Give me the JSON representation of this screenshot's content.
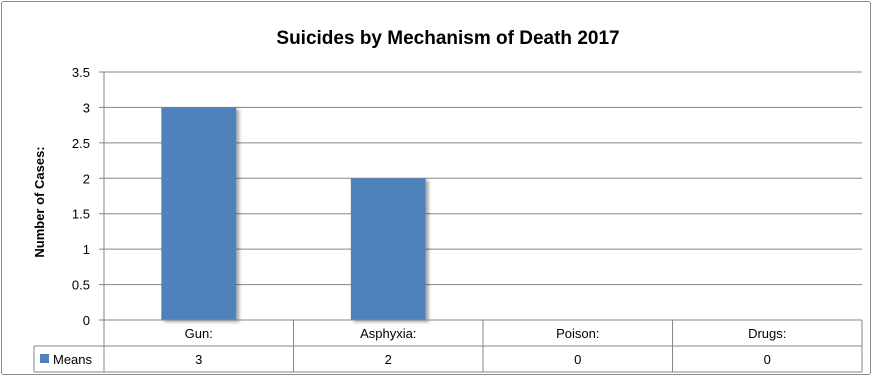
{
  "chart_data": {
    "type": "bar",
    "title": "Suicides by Mechanism of Death 2017",
    "xlabel": "",
    "ylabel": "Number of Cases:",
    "categories": [
      "Gun:",
      "Asphyxia:",
      "Poison:",
      "Drugs:"
    ],
    "series": [
      {
        "name": "Means",
        "values": [
          3,
          2,
          0,
          0
        ],
        "color": "#4f81bd"
      }
    ],
    "ylim": [
      0,
      3.5
    ],
    "yticks": [
      "0",
      "0.5",
      "1",
      "1.5",
      "2",
      "2.5",
      "3",
      "3.5"
    ],
    "grid": true,
    "legend": "data-table",
    "data_table": {
      "row_label": "Means",
      "values": [
        "3",
        "2",
        "0",
        "0"
      ]
    }
  }
}
